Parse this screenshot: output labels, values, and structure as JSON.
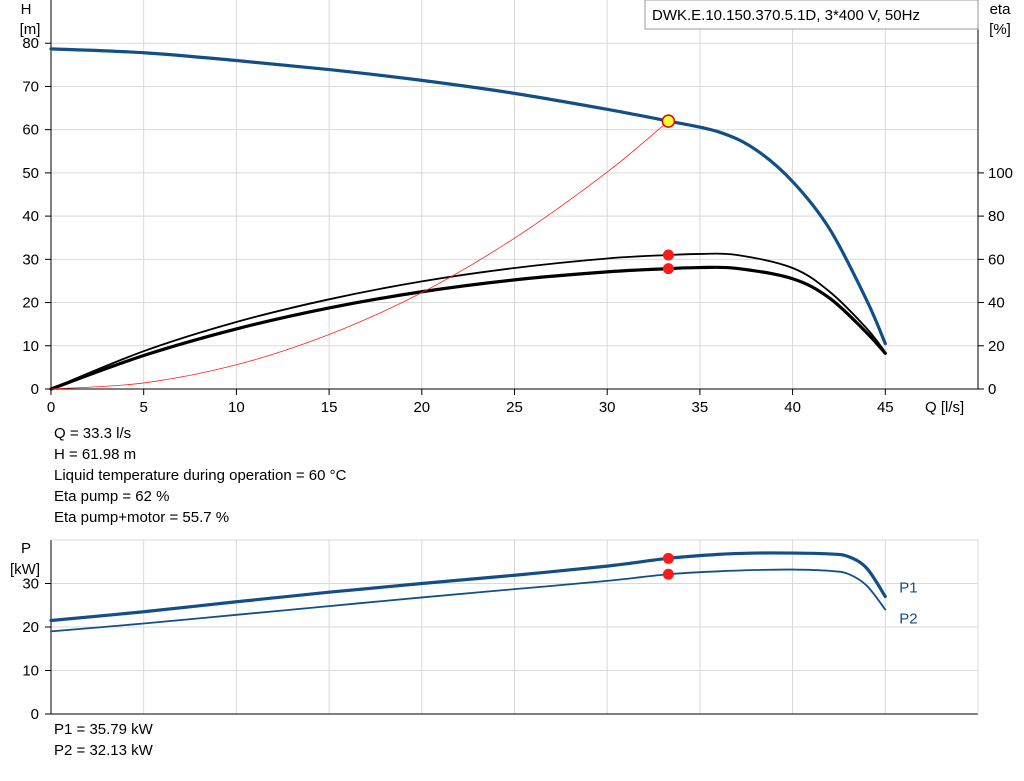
{
  "title_box": "DWK.E.10.150.370.5.1D, 3*400  V, 50Hz",
  "chart_data": [
    {
      "type": "line",
      "name": "head-efficiency",
      "xlabel": "Q [l/s]",
      "ylabel": [
        "H",
        "[m]"
      ],
      "y2label": [
        "eta",
        "[%]"
      ],
      "xlim": [
        0,
        50
      ],
      "ylim": [
        0,
        90
      ],
      "y2lim": [
        0,
        180
      ],
      "xticks": [
        0,
        5,
        10,
        15,
        20,
        25,
        30,
        35,
        40,
        45
      ],
      "yticks": [
        0,
        10,
        20,
        30,
        40,
        50,
        60,
        70,
        80
      ],
      "y2ticks": [
        0,
        20,
        40,
        60,
        80,
        100
      ],
      "grid": true,
      "series": [
        {
          "key": "H",
          "axis": "left",
          "color": "#134f86",
          "width": 3.2,
          "x": [
            0,
            5,
            10,
            15,
            20,
            25,
            30,
            33.3,
            36,
            38,
            40,
            42,
            44,
            45
          ],
          "y": [
            78.7,
            77.8,
            76.0,
            73.9,
            71.4,
            68.4,
            64.7,
            61.98,
            59.5,
            55.4,
            48.0,
            37.0,
            20.5,
            10.5
          ]
        },
        {
          "key": "eta_pump",
          "axis": "right",
          "color": "#000000",
          "width": 1.8,
          "x": [
            0,
            5,
            10,
            15,
            20,
            25,
            30,
            33.3,
            35,
            37,
            40,
            42,
            44,
            45
          ],
          "y": [
            0,
            17.5,
            31,
            41.5,
            49.8,
            56,
            60.4,
            62,
            62.5,
            62,
            56,
            45,
            28,
            17
          ]
        },
        {
          "key": "eta_pump_motor",
          "axis": "right",
          "color": "#000000",
          "width": 3.2,
          "x": [
            0,
            5,
            10,
            15,
            20,
            25,
            30,
            33.3,
            35,
            37,
            40,
            42,
            44,
            45
          ],
          "y": [
            0,
            15.5,
            27.8,
            37.5,
            45,
            50.5,
            54.2,
            55.7,
            56.2,
            55.8,
            51,
            42,
            26,
            16.5
          ]
        },
        {
          "key": "system_curve",
          "axis": "left",
          "color": "#ff2020",
          "width": 0.8,
          "x": [
            0,
            5,
            10,
            15,
            20,
            25,
            30,
            33.3
          ],
          "y": [
            0,
            1.4,
            5.6,
            12.6,
            22.3,
            34.9,
            50.2,
            61.98
          ]
        }
      ],
      "points": [
        {
          "x": 33.3,
          "y": 61.98,
          "axis": "left",
          "style": "operating"
        },
        {
          "x": 33.3,
          "y": 62,
          "axis": "right",
          "style": "marker"
        },
        {
          "x": 33.3,
          "y": 55.7,
          "axis": "right",
          "style": "marker"
        }
      ]
    },
    {
      "type": "line",
      "name": "power",
      "ylabel": [
        "P",
        "[kW]"
      ],
      "xlim": [
        0,
        50
      ],
      "ylim": [
        0,
        40
      ],
      "yticks": [
        0,
        10,
        20,
        30
      ],
      "grid": true,
      "series": [
        {
          "key": "P1",
          "label": "P1",
          "color": "#134f86",
          "width": 3.2,
          "x": [
            0,
            5,
            10,
            15,
            20,
            25,
            30,
            33.3,
            36,
            38,
            40,
            42,
            43,
            44,
            45
          ],
          "y": [
            21.5,
            23.5,
            25.8,
            28.0,
            30.0,
            31.9,
            34.0,
            35.79,
            36.7,
            37.0,
            37.0,
            36.8,
            36.2,
            33.5,
            27.0
          ]
        },
        {
          "key": "P2",
          "label": "P2",
          "color": "#134f86",
          "width": 1.8,
          "x": [
            0,
            5,
            10,
            15,
            20,
            25,
            30,
            33.3,
            36,
            38,
            40,
            42,
            43,
            44,
            45
          ],
          "y": [
            19.0,
            20.8,
            22.8,
            24.8,
            26.8,
            28.7,
            30.6,
            32.13,
            32.8,
            33.1,
            33.2,
            32.9,
            32.2,
            29.5,
            24.0
          ]
        }
      ],
      "points": [
        {
          "x": 33.3,
          "y": 35.79,
          "style": "marker"
        },
        {
          "x": 33.3,
          "y": 32.13,
          "style": "marker"
        }
      ]
    }
  ],
  "info_main": [
    "Q = 33.3 l/s",
    "H = 61.98 m",
    "Liquid temperature during operation = 60 °C",
    "Eta pump = 62 %",
    "Eta pump+motor = 55.7 %"
  ],
  "info_power": [
    "P1 = 35.79 kW",
    "P2 = 32.13 kW"
  ]
}
